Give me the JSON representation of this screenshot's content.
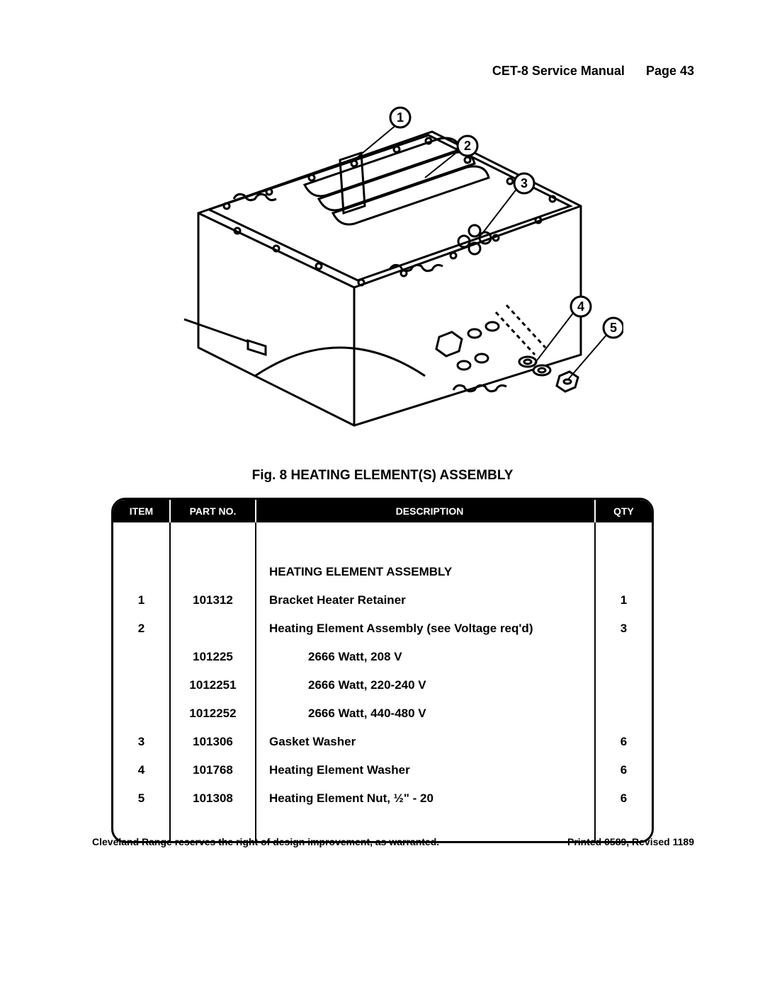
{
  "header": {
    "manual": "CET-8 Service Manual",
    "page_label": "Page 43"
  },
  "diagram": {
    "callouts": [
      "1",
      "2",
      "3",
      "4",
      "5"
    ],
    "stroke": "#000000",
    "stroke_width": 3,
    "background": "#ffffff"
  },
  "caption": "Fig. 8 HEATING ELEMENT(S) ASSEMBLY",
  "table": {
    "columns": [
      "ITEM",
      "PART NO.",
      "DESCRIPTION",
      "QTY"
    ],
    "header_bg": "#000000",
    "header_fg": "#ffffff",
    "border_color": "#000000",
    "rows": [
      {
        "item": "",
        "part": "",
        "desc": "HEATING ELEMENT ASSEMBLY",
        "qty": "",
        "style": "section"
      },
      {
        "item": "1",
        "part": "101312",
        "desc": "Bracket Heater Retainer",
        "qty": "1"
      },
      {
        "item": "2",
        "part": "",
        "desc": "Heating Element Assembly (see Voltage req'd)",
        "qty": "3"
      },
      {
        "item": "",
        "part": "101225",
        "desc": "2666 Watt, 208 V",
        "qty": "",
        "style": "indent"
      },
      {
        "item": "",
        "part": "1012251",
        "desc": "2666 Watt, 220-240 V",
        "qty": "",
        "style": "indent"
      },
      {
        "item": "",
        "part": "1012252",
        "desc": "2666 Watt, 440-480 V",
        "qty": "",
        "style": "indent"
      },
      {
        "item": "3",
        "part": "101306",
        "desc": "Gasket Washer",
        "qty": "6"
      },
      {
        "item": "4",
        "part": "101768",
        "desc": "Heating Element Washer",
        "qty": "6"
      },
      {
        "item": "5",
        "part": "101308",
        "desc": "Heating Element Nut, ½\" - 20",
        "qty": "6"
      }
    ]
  },
  "footer": {
    "left": "Cleveland Range reserves the right of design improvement, as warranted.",
    "right": "Printed 0589, Revised 1189"
  }
}
